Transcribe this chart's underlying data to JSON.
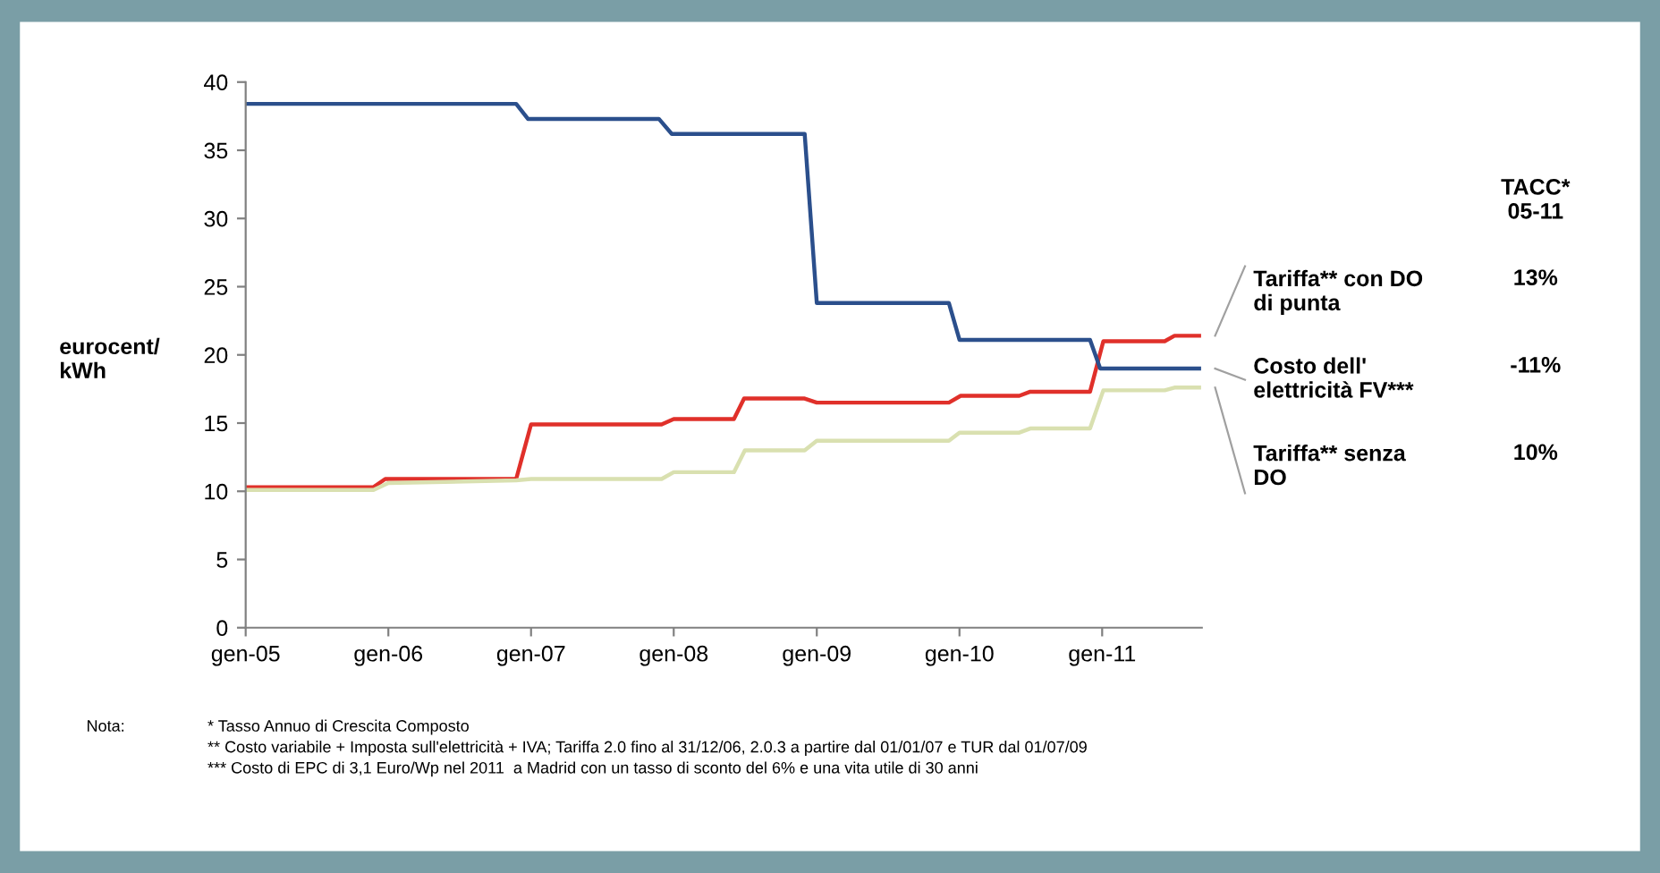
{
  "chart_data": {
    "type": "line",
    "ylabel": "eurocent/\nkWh",
    "xlim": [
      "2005-01-01",
      "2011-09-13"
    ],
    "xticks": [
      {
        "value": "2005-01",
        "label": "gen-05"
      },
      {
        "value": "2006-01",
        "label": "gen-06"
      },
      {
        "value": "2007-01",
        "label": "gen-07"
      },
      {
        "value": "2008-01",
        "label": "gen-08"
      },
      {
        "value": "2009-01",
        "label": "gen-09"
      },
      {
        "value": "2010-01",
        "label": "gen-10"
      },
      {
        "value": "2011-01",
        "label": "gen-11"
      }
    ],
    "ylim": [
      0,
      40
    ],
    "yticks": [
      0,
      5,
      10,
      15,
      20,
      25,
      30,
      35,
      40
    ],
    "grid": false,
    "legend": false,
    "marker": "none",
    "line_style": "solid",
    "series": [
      {
        "name": "Tariffa** con DO\ndi punta",
        "color": "#e0302a",
        "x": [
          "2005-01-01",
          "2005-11-24",
          "2005-12-24",
          "2006-11-24",
          "2007-01-01",
          "2007-12-01",
          "2008-01-01",
          "2008-06-03",
          "2008-06-29",
          "2008-12-01",
          "2009-01-01",
          "2009-12-05",
          "2010-01-04",
          "2010-06-03",
          "2010-07-01",
          "2010-12-01",
          "2011-01-04",
          "2011-06-10",
          "2011-07-05",
          "2011-09-06"
        ],
        "values": [
          10.3,
          10.3,
          10.9,
          10.9,
          14.9,
          14.9,
          15.3,
          15.3,
          16.8,
          16.8,
          16.5,
          16.5,
          17.0,
          17.0,
          17.3,
          17.3,
          21.0,
          21.0,
          21.4,
          21.4
        ]
      },
      {
        "name": "Costo dell'\nelettricità FV***",
        "color": "#2b4f8c",
        "x": [
          "2005-01-01",
          "2006-11-24",
          "2006-12-24",
          "2007-11-24",
          "2007-12-27",
          "2008-12-01",
          "2009-01-01",
          "2009-12-05",
          "2010-01-01",
          "2010-12-01",
          "2010-12-27",
          "2011-09-06"
        ],
        "values": [
          38.4,
          38.4,
          37.3,
          37.3,
          36.2,
          36.2,
          23.8,
          23.8,
          21.1,
          21.1,
          19.0,
          19.0
        ]
      },
      {
        "name": "Tariffa** senza\nDO",
        "color": "#d9e0b0",
        "x": [
          "2005-01-01",
          "2005-11-24",
          "2006-01-01",
          "2006-11-24",
          "2007-01-01",
          "2007-12-01",
          "2008-01-01",
          "2008-06-03",
          "2008-07-01",
          "2008-12-01",
          "2009-01-01",
          "2009-12-05",
          "2010-01-01",
          "2010-06-03",
          "2010-07-01",
          "2010-12-01",
          "2011-01-04",
          "2011-06-10",
          "2011-07-05",
          "2011-09-06"
        ],
        "values": [
          10.1,
          10.1,
          10.6,
          10.8,
          10.9,
          10.9,
          11.4,
          11.4,
          13.0,
          13.0,
          13.7,
          13.7,
          14.3,
          14.3,
          14.6,
          14.6,
          17.4,
          17.4,
          17.6,
          17.6
        ]
      }
    ],
    "annotations": [
      "TACC*\n05-11",
      "13%",
      "-11%",
      "10%",
      "Nota:",
      "* Tasso Annuo di Crescita Composto",
      "** Costo variabile + Imposta sull'elettricità + IVA; Tariffa 2.0 fino al 31/12/06, 2.0.3 a partire dal 01/01/07 e TUR dal 01/07/09",
      "*** Costo di EPC di 3,1 Euro/Wp nel 2011  a Madrid con un tasso di sconto del 6% e una vita utile di 30 anni"
    ]
  }
}
